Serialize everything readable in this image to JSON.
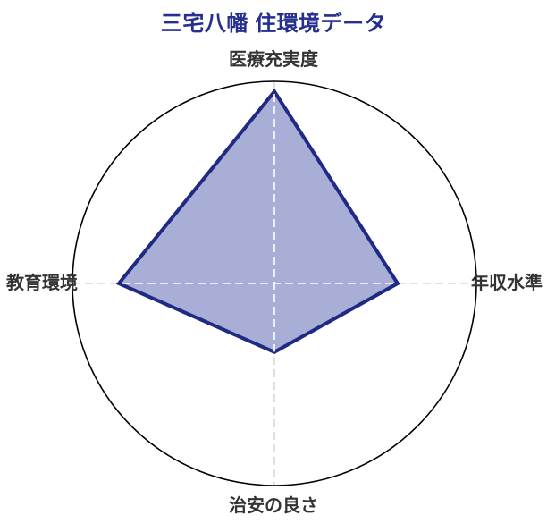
{
  "chart_data": {
    "type": "radar",
    "title": "三宅八幡 住環境データ",
    "categories": [
      "医療充実度",
      "年収水準",
      "治安の良さ",
      "教育環境"
    ],
    "values": [
      0.95,
      0.61,
      0.34,
      0.77
    ],
    "rmax": 1,
    "axes_clockwise_from_top": [
      "医療充実度",
      "年収水準",
      "治安の良さ",
      "教育環境"
    ],
    "legend": "none",
    "grid": "single outer circle with dashed cross axis lines",
    "colors": {
      "series_fill": "#a8aed6",
      "series_stroke": "#1e2a84",
      "outer_circle": "#000000",
      "axis_dash_outside": "#d9d9d9",
      "axis_dash_inside": "#ffffff",
      "title": "#262f8f",
      "axis_label": "#333333"
    }
  }
}
